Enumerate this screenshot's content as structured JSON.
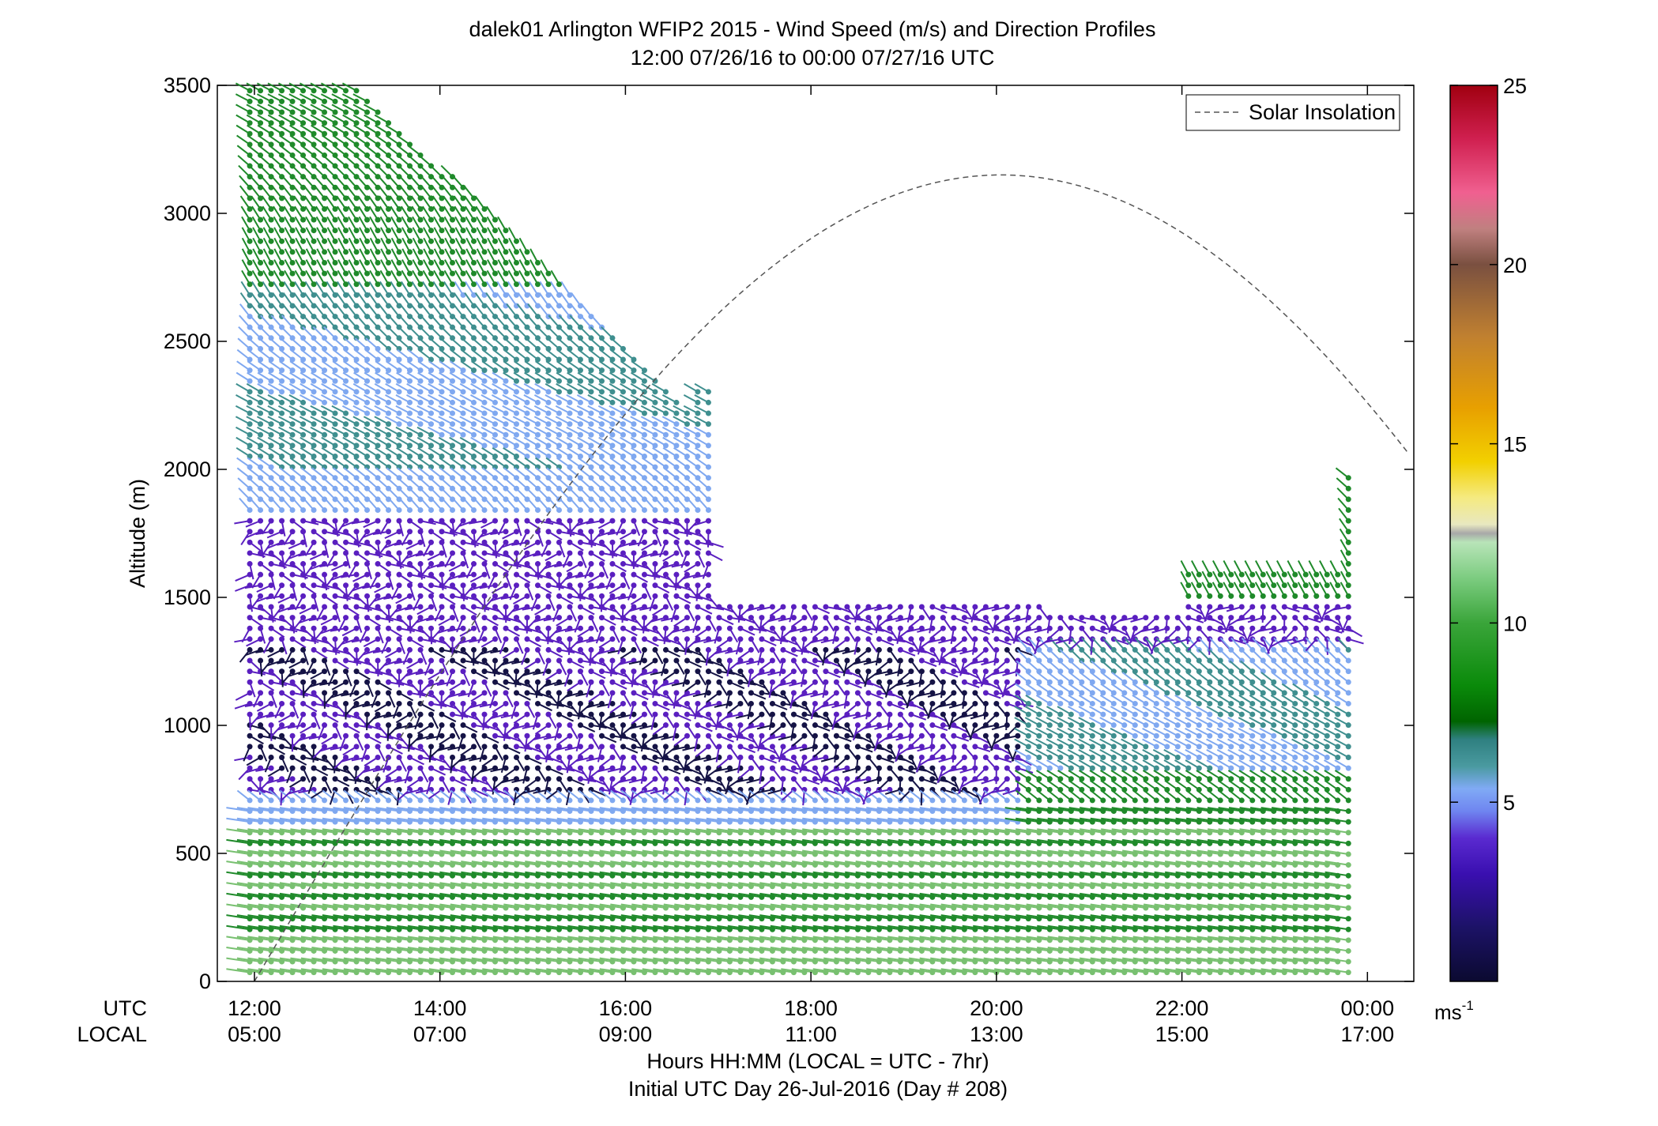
{
  "chart_data": {
    "type": "scatter",
    "title_line1": "dalek01 Arlington WFIP2 2015 - Wind Speed (m/s) and Direction Profiles",
    "title_line2": "12:00 07/26/16 to 00:00 07/27/16  UTC",
    "ylabel": "Altitude (m)",
    "xlabel_line1": "Hours HH:MM  (LOCAL = UTC - 7hr)",
    "xlabel_line2": "Initial UTC Day 26-Jul-2016 (Day # 208)",
    "utc_label": "UTC",
    "local_label": "LOCAL",
    "y_ticks": [
      "0",
      "500",
      "1000",
      "1500",
      "2000",
      "2500",
      "3000",
      "3500"
    ],
    "y_tick_values": [
      0,
      500,
      1000,
      1500,
      2000,
      2500,
      3000,
      3500
    ],
    "ylim": [
      0,
      3500
    ],
    "xlim": [
      11.6,
      24.5
    ],
    "x_tick_hours": [
      12,
      14,
      16,
      18,
      20,
      22,
      24
    ],
    "x_ticks_utc": [
      "12:00",
      "14:00",
      "16:00",
      "18:00",
      "20:00",
      "22:00",
      "00:00"
    ],
    "x_ticks_local": [
      "05:00",
      "07:00",
      "09:00",
      "11:00",
      "13:00",
      "15:00",
      "17:00"
    ],
    "legend_label": "Solar Insolation",
    "legend_placement": "top-right",
    "solar_curve": {
      "start_hour": 12,
      "peak_hour": 20.05,
      "peak_altitude": 3150
    },
    "colorbar": {
      "ticks": [
        "5",
        "10",
        "15",
        "20",
        "25"
      ],
      "tick_values": [
        5,
        10,
        15,
        20,
        25
      ],
      "range": [
        0,
        25
      ],
      "unit_base": "ms",
      "unit_exp": "-1"
    },
    "colors": {
      "purple": "#5a1fc0",
      "navy": "#151345",
      "light_blue": "#7fa8f0",
      "teal": "#3f8f8f",
      "green": "#1f8a2a",
      "light_green": "#78c070"
    }
  }
}
